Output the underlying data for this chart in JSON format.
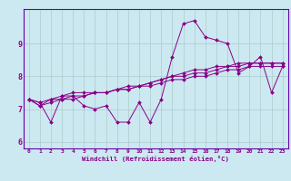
{
  "xlabel": "Windchill (Refroidissement éolien,°C)",
  "xlim": [
    -0.5,
    23.5
  ],
  "ylim": [
    5.8,
    10.05
  ],
  "xticks": [
    0,
    1,
    2,
    3,
    4,
    5,
    6,
    7,
    8,
    9,
    10,
    11,
    12,
    13,
    14,
    15,
    16,
    17,
    18,
    19,
    20,
    21,
    22,
    23
  ],
  "yticks": [
    6,
    7,
    8,
    9
  ],
  "bg_color": "#cce8f0",
  "grid_color": "#aacccc",
  "line_color": "#880088",
  "border_color": "#6600aa",
  "lines": [
    [
      7.3,
      7.2,
      6.6,
      7.4,
      7.4,
      7.1,
      7.0,
      7.1,
      6.6,
      6.6,
      7.2,
      6.6,
      7.3,
      8.6,
      9.6,
      9.7,
      9.2,
      9.1,
      9.0,
      8.1,
      8.3,
      8.6,
      7.5,
      8.3
    ],
    [
      7.3,
      7.1,
      7.3,
      7.3,
      7.3,
      7.4,
      7.5,
      7.5,
      7.6,
      7.6,
      7.7,
      7.7,
      7.8,
      7.9,
      7.9,
      8.0,
      8.0,
      8.1,
      8.2,
      8.2,
      8.3,
      8.3,
      8.3,
      8.3
    ],
    [
      7.3,
      7.1,
      7.2,
      7.3,
      7.4,
      7.4,
      7.5,
      7.5,
      7.6,
      7.7,
      7.7,
      7.8,
      7.9,
      8.0,
      8.0,
      8.1,
      8.1,
      8.2,
      8.3,
      8.3,
      8.4,
      8.4,
      8.4,
      8.4
    ],
    [
      7.3,
      7.2,
      7.3,
      7.4,
      7.5,
      7.5,
      7.5,
      7.5,
      7.6,
      7.6,
      7.7,
      7.8,
      7.9,
      8.0,
      8.1,
      8.2,
      8.2,
      8.3,
      8.3,
      8.4,
      8.4,
      8.4,
      8.4,
      8.4
    ]
  ]
}
